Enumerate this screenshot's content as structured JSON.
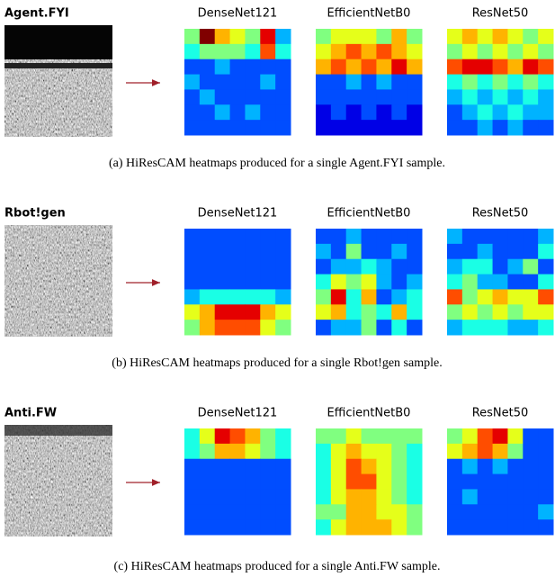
{
  "rows": [
    {
      "sample": "Agent.FYI",
      "models": [
        "DenseNet121",
        "EfficientNetB0",
        "ResNet50"
      ],
      "caption": "(a) HiResCAM heatmaps produced for a single Agent.FYI sample."
    },
    {
      "sample": "Rbot!gen",
      "models": [
        "DenseNet121",
        "EfficientNetB0",
        "ResNet50"
      ],
      "caption": "(b) HiResCAM heatmaps produced for a single Rbot!gen sample."
    },
    {
      "sample": "Anti.FW",
      "models": [
        "DenseNet121",
        "EfficientNetB0",
        "ResNet50"
      ],
      "caption": "(c) HiResCAM heatmaps produced for a single Anti.FW sample."
    }
  ]
}
